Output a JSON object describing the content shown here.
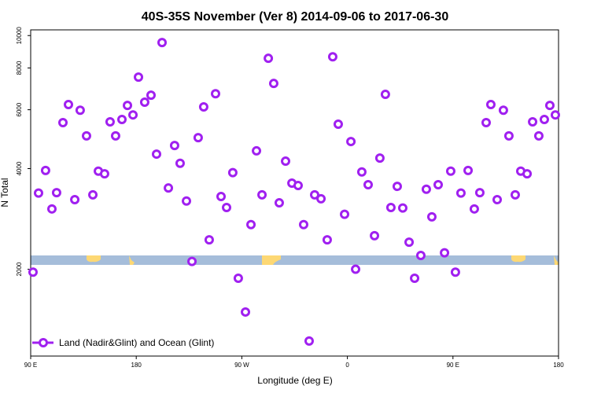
{
  "chart_data": {
    "type": "scatter",
    "title": "40S-35S November (Ver 8)   2014-09-06 to 2017-06-30",
    "xlabel": "Longitude (deg E)",
    "ylabel": "N Total",
    "y_scale": "log",
    "xlim": [
      90,
      540
    ],
    "ylim": [
      1100,
      10400
    ],
    "x_ticks": [
      {
        "value": 90,
        "label": "90 E"
      },
      {
        "value": 180,
        "label": "180"
      },
      {
        "value": 270,
        "label": "90 W"
      },
      {
        "value": 360,
        "label": "0"
      },
      {
        "value": 450,
        "label": "90 E"
      },
      {
        "value": 540,
        "label": "180"
      }
    ],
    "y_ticks": [
      {
        "value": 2000,
        "label": "2000"
      },
      {
        "value": 4000,
        "label": "4000"
      },
      {
        "value": 6000,
        "label": "6000"
      },
      {
        "value": 8000,
        "label": "8000"
      },
      {
        "value": 10000,
        "label": "10000"
      }
    ],
    "legend": {
      "position": "bottom-left",
      "label": "Land (Nadir&Glint) and Ocean (Glint)"
    },
    "series": [
      {
        "name": "Land (Nadir&Glint) and Ocean (Glint)",
        "color": "#A020F0",
        "x": [
          92,
          96.7,
          102.7,
          108.1,
          112.1,
          117.5,
          122.2,
          127.6,
          132.2,
          137.6,
          143,
          147.7,
          153,
          157.7,
          162.4,
          167.8,
          172.5,
          177.2,
          181.9,
          187.2,
          192.6,
          197.3,
          202,
          207.4,
          212.7,
          217.4,
          222.8,
          227.5,
          232.8,
          237.5,
          242.2,
          247.6,
          252.3,
          257,
          262.3,
          267,
          273.1,
          277.8,
          282.5,
          287.2,
          292.6,
          297.2,
          301.9,
          307.3,
          312.7,
          318,
          322.7,
          327.4,
          332.1,
          337.5,
          342.8,
          347.5,
          352.2,
          357.6,
          363,
          367,
          372.3,
          377.7,
          383.1,
          387.7,
          392.4,
          397.1,
          402.5,
          407.2,
          412.6,
          417.3,
          422.6,
          427.3,
          432,
          437.4,
          442.8,
          448.1,
          452.1,
          456.8,
          462.9,
          468.2,
          472.9,
          478.3,
          482.3,
          487.7,
          493,
          497.7,
          503.1,
          507.8,
          513.2,
          517.9,
          523.2,
          527.9,
          532.6,
          537.3
        ],
        "y": [
          1960,
          3380,
          3950,
          3030,
          3390,
          5490,
          6220,
          3230,
          5980,
          5010,
          3340,
          3930,
          3860,
          5520,
          5010,
          5610,
          6180,
          5790,
          7510,
          6320,
          6630,
          4420,
          9530,
          3500,
          4690,
          4150,
          3200,
          2110,
          4950,
          6120,
          2450,
          6700,
          3300,
          3060,
          3890,
          1880,
          1490,
          2720,
          4520,
          3340,
          8550,
          7190,
          3160,
          4210,
          3620,
          3560,
          2720,
          1220,
          3340,
          3250,
          2450,
          8640,
          5430,
          2920,
          4820,
          2000,
          3910,
          3580,
          2520,
          4300,
          6670,
          3060,
          3540,
          3050,
          2410,
          1880,
          2200,
          3470,
          2870,
          3580,
          2240,
          3930,
          1960,
          3380,
          3950,
          3030,
          3390,
          5490,
          6220,
          3230,
          5980,
          5010,
          3340,
          3930,
          3860,
          5520,
          5010,
          5610,
          6180,
          5790
        ]
      }
    ]
  }
}
